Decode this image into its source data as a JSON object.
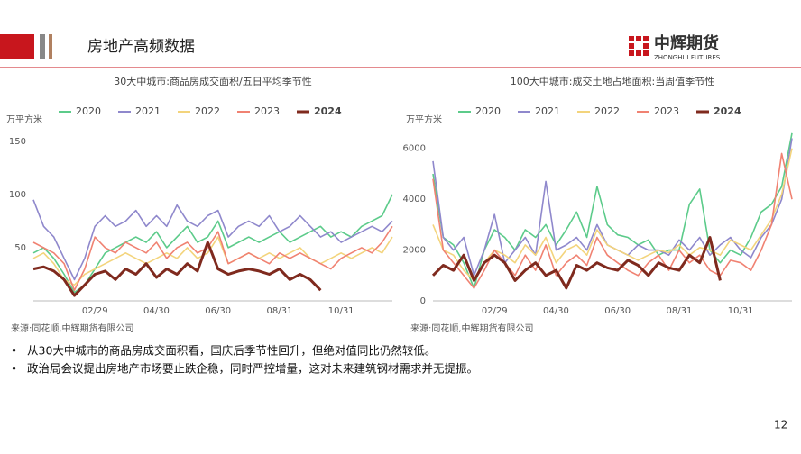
{
  "header": {
    "title": "房地产高频数据",
    "logo_cn": "中辉期货",
    "logo_en": "ZHONGHUI FUTURES"
  },
  "chart_data": [
    {
      "type": "line",
      "title": "30大中城市:商品房成交面积/五日平均季节性",
      "y_label": "万平方米",
      "categories": [
        null,
        null,
        null,
        null,
        null,
        null,
        "02/29",
        null,
        null,
        null,
        null,
        null,
        "04/30",
        null,
        null,
        null,
        null,
        null,
        "06/30",
        null,
        null,
        null,
        null,
        null,
        "08/31",
        null,
        null,
        null,
        null,
        null,
        "10/31",
        null,
        null,
        null,
        null,
        null
      ],
      "ylim": [
        0,
        160
      ],
      "yticks": [
        50,
        100,
        150
      ],
      "series": [
        {
          "name": "2020",
          "color": "#5ccb8a",
          "values": [
            45,
            50,
            40,
            25,
            8,
            15,
            30,
            45,
            50,
            55,
            60,
            55,
            65,
            50,
            60,
            70,
            55,
            60,
            75,
            50,
            55,
            60,
            55,
            60,
            65,
            55,
            60,
            65,
            70,
            60,
            65,
            60,
            70,
            75,
            80,
            100
          ]
        },
        {
          "name": "2021",
          "color": "#8f88cc",
          "values": [
            95,
            70,
            60,
            40,
            20,
            40,
            70,
            80,
            70,
            75,
            85,
            70,
            80,
            70,
            90,
            75,
            70,
            80,
            85,
            60,
            70,
            75,
            70,
            80,
            65,
            70,
            80,
            70,
            60,
            65,
            55,
            60,
            65,
            70,
            65,
            75
          ]
        },
        {
          "name": "2022",
          "color": "#f3d47c",
          "values": [
            40,
            45,
            35,
            20,
            15,
            25,
            30,
            35,
            40,
            45,
            40,
            35,
            40,
            45,
            40,
            50,
            40,
            45,
            60,
            35,
            40,
            45,
            40,
            45,
            40,
            45,
            50,
            40,
            35,
            40,
            45,
            40,
            45,
            50,
            45,
            60
          ]
        },
        {
          "name": "2023",
          "color": "#f08272",
          "values": [
            55,
            50,
            45,
            35,
            10,
            30,
            60,
            50,
            45,
            55,
            50,
            45,
            55,
            40,
            50,
            55,
            45,
            50,
            65,
            35,
            40,
            45,
            40,
            35,
            45,
            40,
            45,
            40,
            35,
            30,
            40,
            45,
            50,
            45,
            55,
            70
          ]
        },
        {
          "name": "2024",
          "color": "#7f2a1e",
          "values": [
            30,
            32,
            28,
            20,
            5,
            15,
            25,
            28,
            20,
            30,
            25,
            35,
            22,
            30,
            25,
            35,
            28,
            55,
            30,
            25,
            28,
            30,
            28,
            25,
            30,
            20,
            25,
            20,
            10,
            null,
            null,
            null,
            null,
            null,
            null,
            null
          ]
        }
      ],
      "source": "来源:同花顺,中辉期货有限公司"
    },
    {
      "type": "line",
      "title": "100大中城市:成交土地占地面积:当周值季节性",
      "y_label": "万平方米",
      "categories": [
        null,
        null,
        null,
        null,
        null,
        null,
        "02/29",
        null,
        null,
        null,
        null,
        null,
        "04/30",
        null,
        null,
        null,
        null,
        null,
        "06/30",
        null,
        null,
        null,
        null,
        null,
        "08/31",
        null,
        null,
        null,
        null,
        null,
        "10/31",
        null,
        null,
        null,
        null,
        null
      ],
      "ylim": [
        0,
        6700
      ],
      "yticks": [
        0,
        2000,
        4000,
        6000
      ],
      "series": [
        {
          "name": "2020",
          "color": "#5ccb8a",
          "values": [
            5000,
            2500,
            2200,
            1500,
            500,
            2000,
            2800,
            2500,
            2000,
            2800,
            2500,
            3000,
            2200,
            2800,
            3500,
            2500,
            4500,
            3000,
            2600,
            2500,
            2200,
            2400,
            1800,
            2000,
            2000,
            3800,
            4400,
            2000,
            1500,
            2000,
            1800,
            2500,
            3500,
            3800,
            4500,
            6600
          ]
        },
        {
          "name": "2021",
          "color": "#8f88cc",
          "values": [
            5500,
            2500,
            2000,
            2500,
            1000,
            2000,
            3400,
            1500,
            2000,
            2500,
            1800,
            4700,
            2000,
            2200,
            2500,
            2000,
            3000,
            2200,
            2000,
            1800,
            2200,
            2000,
            2000,
            1800,
            2400,
            2000,
            2500,
            1800,
            2200,
            2500,
            2000,
            1700,
            2500,
            3000,
            4000,
            6400
          ]
        },
        {
          "name": "2022",
          "color": "#f3d47c",
          "values": [
            3000,
            2000,
            1800,
            1200,
            800,
            1500,
            2000,
            1800,
            1500,
            2200,
            1800,
            2500,
            1500,
            2000,
            2200,
            1800,
            2800,
            2200,
            2000,
            1800,
            1600,
            1800,
            2000,
            1900,
            2200,
            1800,
            2100,
            2000,
            1800,
            2400,
            2200,
            2000,
            2600,
            3200,
            4200,
            6000
          ]
        },
        {
          "name": "2023",
          "color": "#f08272",
          "values": [
            4800,
            2000,
            1500,
            1000,
            500,
            1200,
            2000,
            1500,
            1000,
            1800,
            1200,
            2200,
            1000,
            1500,
            1800,
            1400,
            2500,
            1800,
            1500,
            1200,
            1000,
            1500,
            1800,
            1200,
            2000,
            1500,
            1800,
            1200,
            1000,
            1600,
            1500,
            1200,
            2000,
            3000,
            5800,
            4000
          ]
        },
        {
          "name": "2024",
          "color": "#7f2a1e",
          "values": [
            1000,
            1400,
            1200,
            1800,
            800,
            1500,
            1800,
            1500,
            800,
            1200,
            1500,
            1000,
            1200,
            500,
            1400,
            1200,
            1500,
            1300,
            1200,
            1600,
            1400,
            1000,
            1500,
            1300,
            1200,
            1800,
            1500,
            2500,
            800,
            null,
            null,
            null,
            null,
            null,
            null,
            null
          ]
        }
      ],
      "source": "来源:同花顺,中辉期货有限公司"
    }
  ],
  "bullets": [
    "从30大中城市的商品房成交面积看，国庆后季节性回升，但绝对值同比仍然较低。",
    "政治局会议提出房地产市场要止跌企稳，同时严控增量，这对未来建筑钢材需求并无提振。"
  ],
  "page_number": "12"
}
